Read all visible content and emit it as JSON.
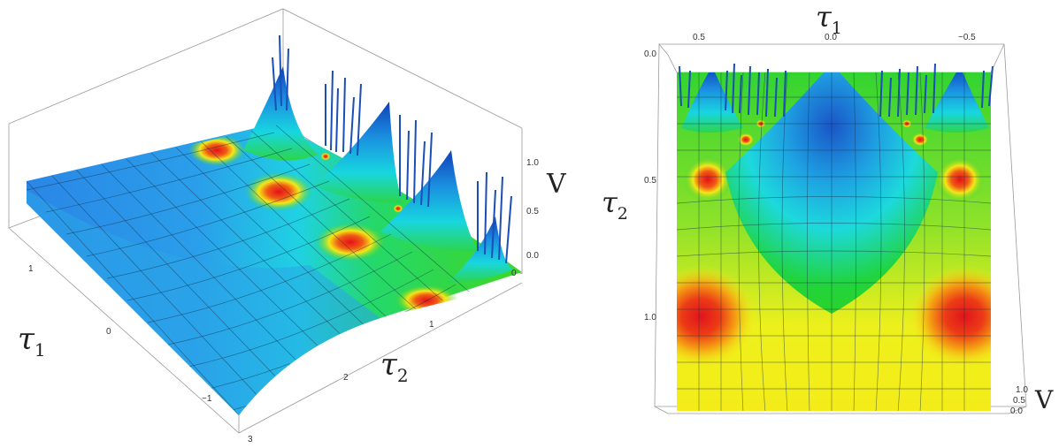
{
  "left_plot": {
    "axis_label_tau1": "τ",
    "axis_label_tau1_sub": "1",
    "axis_label_tau2": "τ",
    "axis_label_tau2_sub": "2",
    "axis_label_v": "V",
    "tau1_ticks": [
      "1",
      "0",
      "−1"
    ],
    "tau2_ticks": [
      "0",
      "1",
      "2",
      "3"
    ],
    "v_ticks": [
      "1.0",
      "0.5",
      "0.0"
    ]
  },
  "right_plot": {
    "axis_label_tau1": "τ",
    "axis_label_tau1_sub": "1",
    "axis_label_tau2": "τ",
    "axis_label_tau2_sub": "2",
    "axis_label_v": "V",
    "tau1_ticks": [
      "0.5",
      "0.0",
      "−0.5"
    ],
    "tau2_ticks": [
      "0.0",
      "0.5",
      "1.0"
    ],
    "v_ticks": [
      "1.0",
      "0.5",
      "0.0"
    ]
  },
  "colors": {
    "blue": "#1f6fd6",
    "cyan": "#19d7e6",
    "green": "#29d22b",
    "yellow": "#f2ec18",
    "orange": "#f39b12",
    "red": "#e7141b"
  }
}
